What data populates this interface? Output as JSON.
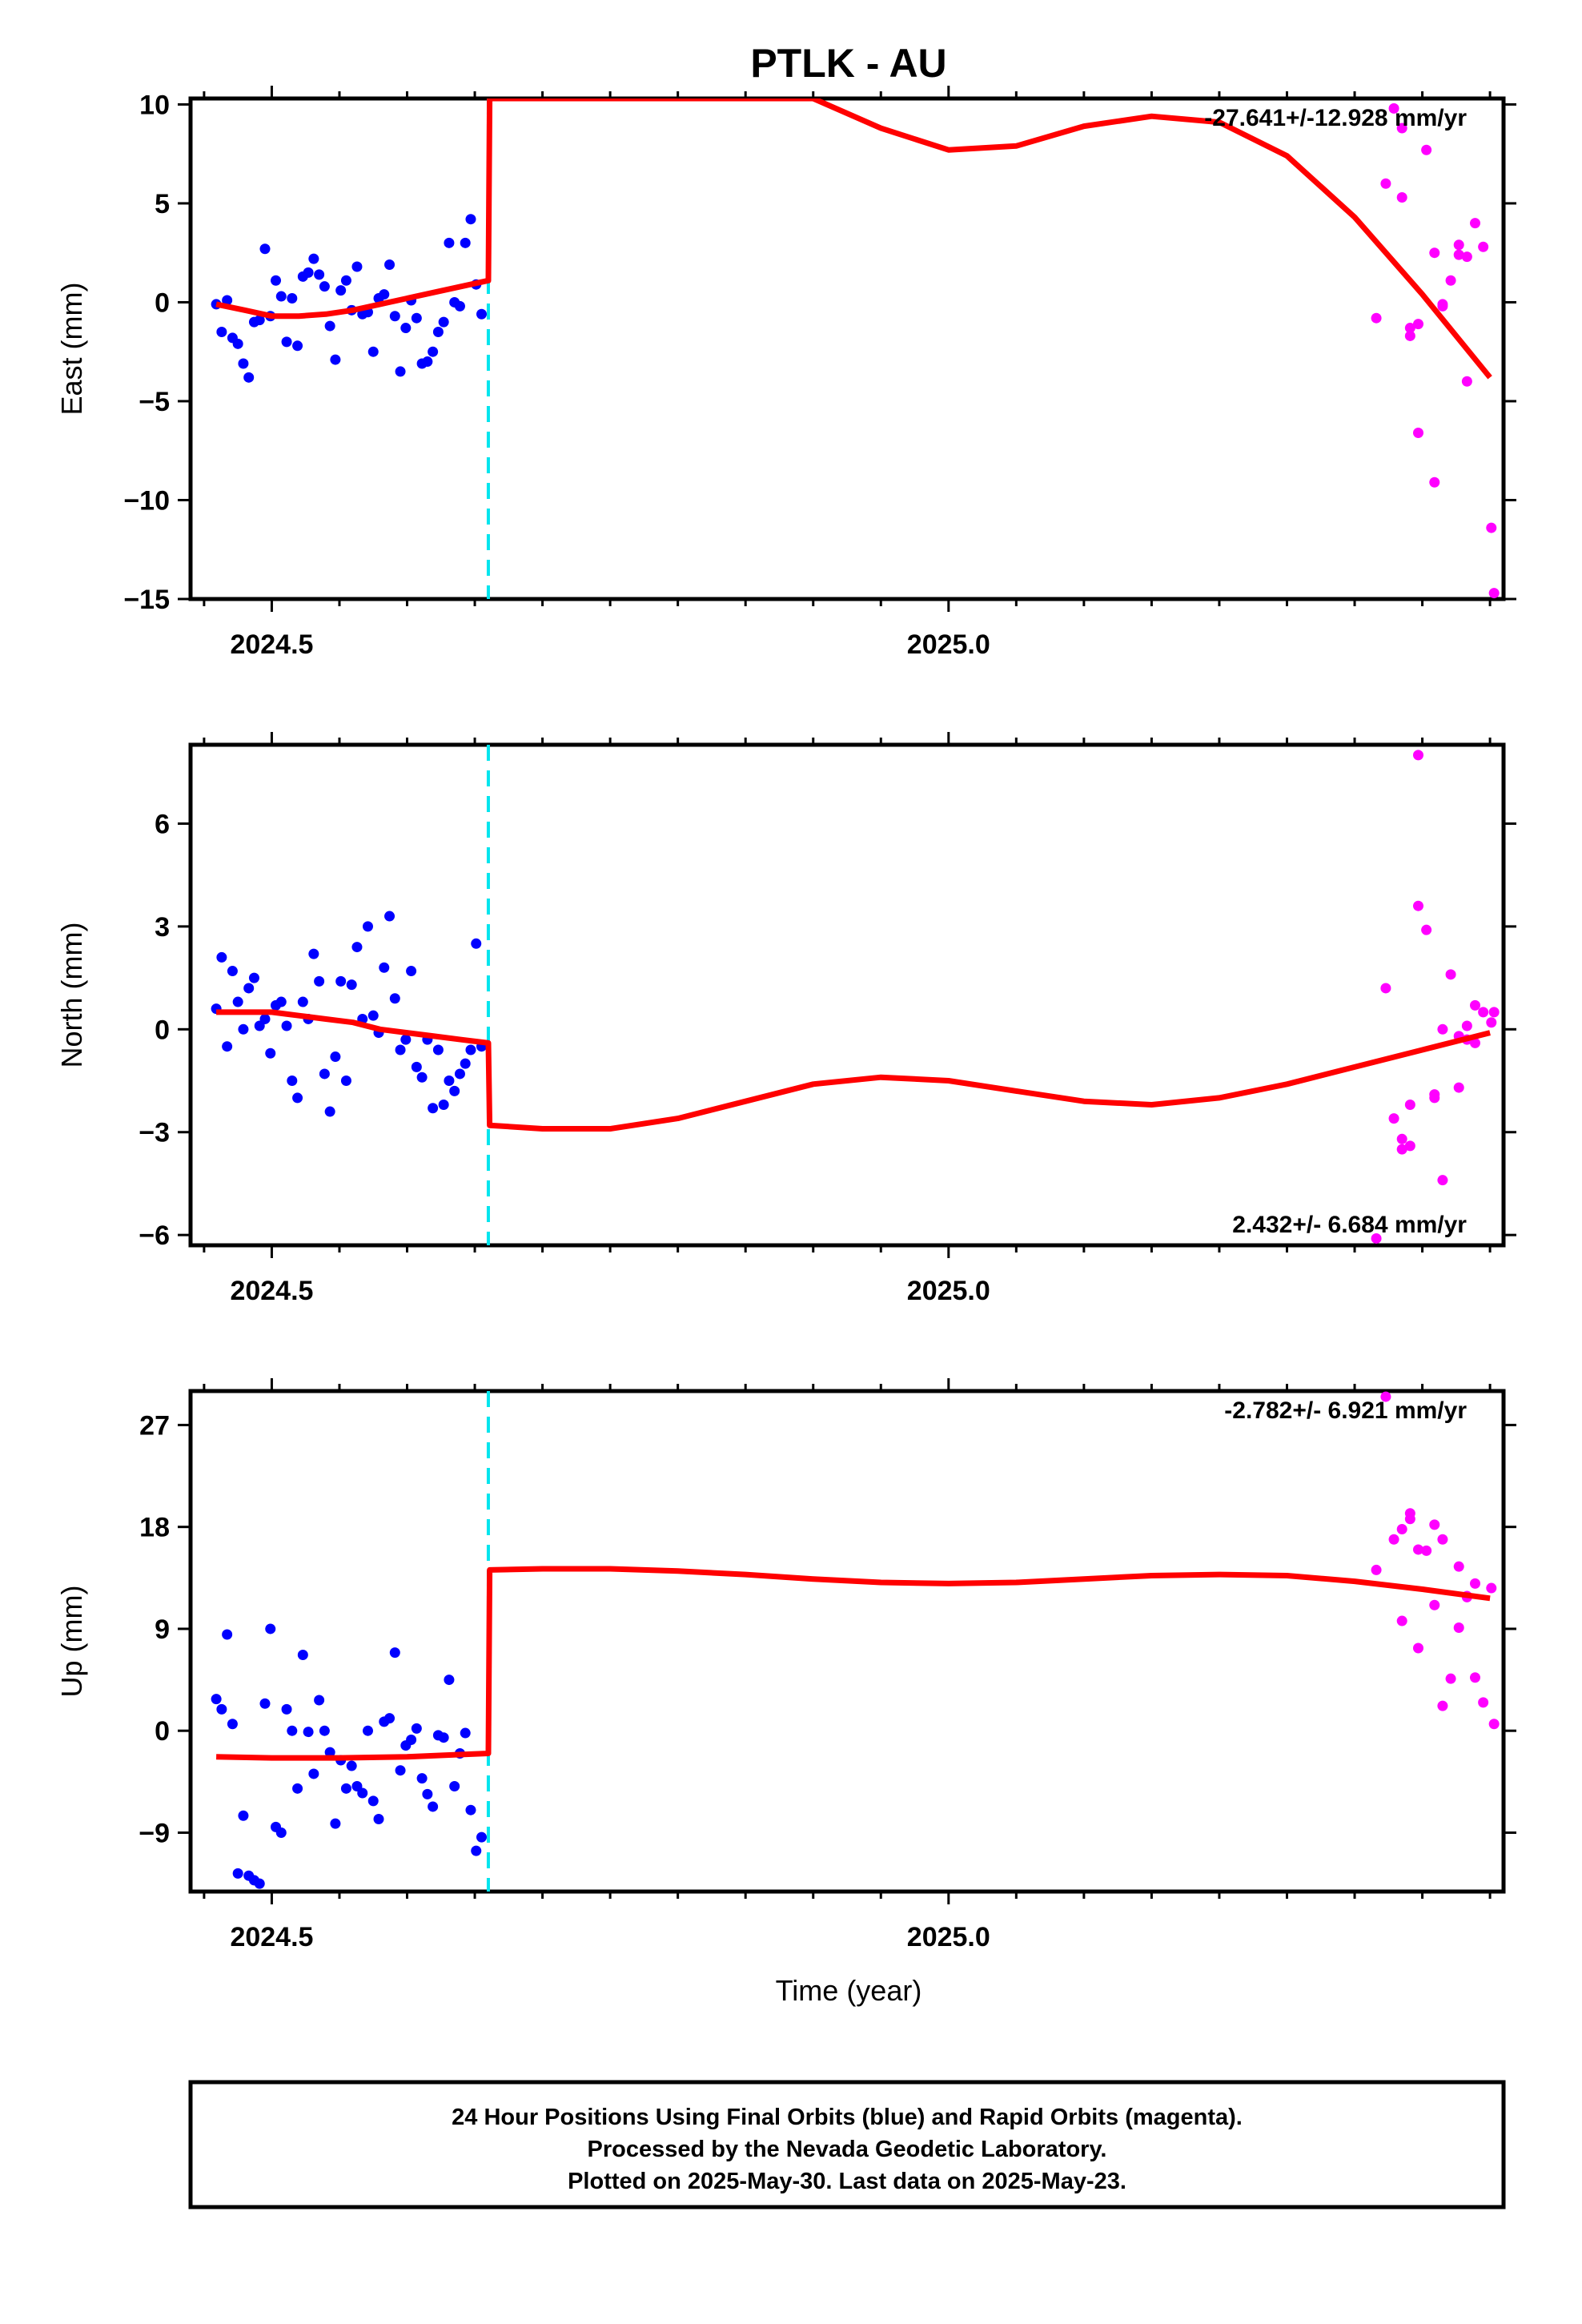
{
  "chart_data": {
    "type": "scatter",
    "title": "PTLK - AU",
    "xlabel": "Time (year)",
    "xlim": [
      2024.44,
      2025.41
    ],
    "xticks": [
      "2024.5",
      "2025.0"
    ],
    "colors": {
      "final": "#0000ff",
      "rapid": "#ff00ff",
      "model": "#ff0000",
      "offset": "#00e5ee",
      "frame": "#000000"
    },
    "offset_epoch": 2024.66,
    "panels": [
      {
        "name": "east",
        "ylabel": "East (mm)",
        "ylim": [
          -15,
          10.3
        ],
        "yticks": [
          "-15",
          "-10",
          "-5",
          "0",
          "5",
          "10"
        ],
        "rate_text": "-27.641+/-12.928 mm/yr",
        "rate_pos": "top-right",
        "final": {
          "x": [
            2024.459,
            2024.463,
            2024.467,
            2024.471,
            2024.475,
            2024.479,
            2024.483,
            2024.487,
            2024.491,
            2024.495,
            2024.499,
            2024.503,
            2024.507,
            2024.511,
            2024.515,
            2024.519,
            2024.523,
            2024.527,
            2024.531,
            2024.535,
            2024.539,
            2024.543,
            2024.547,
            2024.551,
            2024.555,
            2024.559,
            2024.563,
            2024.567,
            2024.571,
            2024.575,
            2024.579,
            2024.583,
            2024.587,
            2024.591,
            2024.595,
            2024.599,
            2024.603,
            2024.607,
            2024.611,
            2024.615,
            2024.619,
            2024.623,
            2024.627,
            2024.631,
            2024.635,
            2024.639,
            2024.643,
            2024.647,
            2024.651,
            2024.655
          ],
          "y": [
            -0.1,
            -1.5,
            0.1,
            -1.8,
            -2.1,
            -3.1,
            -3.8,
            -1.0,
            -0.9,
            2.7,
            -0.7,
            1.1,
            0.3,
            -2.0,
            0.2,
            -2.2,
            1.3,
            1.5,
            2.2,
            1.4,
            0.8,
            -1.2,
            -2.9,
            0.6,
            1.1,
            -0.4,
            1.8,
            -0.6,
            -0.5,
            -2.5,
            0.2,
            0.4,
            1.9,
            -0.7,
            -3.5,
            -1.3,
            0.1,
            -0.8,
            -3.1,
            -3.0,
            -2.5,
            -1.5,
            -1.0,
            3.0,
            0.0,
            -0.2,
            3.0,
            4.2,
            0.9,
            -0.6
          ]
        },
        "rapid": {
          "x": [
            2025.316,
            2025.323,
            2025.329,
            2025.335,
            2025.341,
            2025.347,
            2025.353,
            2025.359,
            2025.365,
            2025.371,
            2025.377,
            2025.383,
            2025.389,
            2025.395,
            2025.401,
            2025.403,
            2025.335,
            2025.341,
            2025.347,
            2025.359,
            2025.365,
            2025.377,
            2025.383
          ],
          "y": [
            -0.8,
            6.0,
            9.8,
            5.3,
            -1.3,
            -6.6,
            7.7,
            -9.1,
            -0.1,
            1.1,
            2.4,
            -4.0,
            4.0,
            2.8,
            -11.4,
            -14.7,
            8.8,
            -1.7,
            -1.1,
            2.5,
            -0.2,
            2.9,
            2.3
          ]
        },
        "model": {
          "x": [
            2024.459,
            2024.48,
            2024.5,
            2024.52,
            2024.54,
            2024.56,
            2024.58,
            2024.6,
            2024.62,
            2024.64,
            2024.66,
            2024.661,
            2024.9,
            2024.95,
            2025.0,
            2025.05,
            2025.1,
            2025.15,
            2025.2,
            2025.25,
            2025.3,
            2025.35,
            2025.4
          ],
          "y": [
            -0.1,
            -0.4,
            -0.7,
            -0.7,
            -0.6,
            -0.4,
            -0.1,
            0.2,
            0.5,
            0.8,
            1.1,
            10.3,
            10.3,
            8.8,
            7.7,
            7.9,
            8.9,
            9.4,
            9.1,
            7.4,
            4.3,
            0.4,
            -3.8
          ]
        }
      },
      {
        "name": "north",
        "ylabel": "North (mm)",
        "ylim": [
          -6.3,
          8.3
        ],
        "yticks": [
          "-6",
          "-3",
          "0",
          "3",
          "6"
        ],
        "rate_text": "2.432+/- 6.684 mm/yr",
        "rate_pos": "bottom-right",
        "final": {
          "x": [
            2024.459,
            2024.463,
            2024.467,
            2024.471,
            2024.475,
            2024.479,
            2024.483,
            2024.487,
            2024.491,
            2024.495,
            2024.499,
            2024.503,
            2024.507,
            2024.511,
            2024.515,
            2024.519,
            2024.523,
            2024.527,
            2024.531,
            2024.535,
            2024.539,
            2024.543,
            2024.547,
            2024.551,
            2024.555,
            2024.559,
            2024.563,
            2024.567,
            2024.571,
            2024.575,
            2024.579,
            2024.583,
            2024.587,
            2024.591,
            2024.595,
            2024.599,
            2024.603,
            2024.607,
            2024.611,
            2024.615,
            2024.619,
            2024.623,
            2024.627,
            2024.631,
            2024.635,
            2024.639,
            2024.643,
            2024.647,
            2024.651,
            2024.655
          ],
          "y": [
            0.6,
            2.1,
            -0.5,
            1.7,
            0.8,
            0.0,
            1.2,
            1.5,
            0.1,
            0.3,
            -0.7,
            0.7,
            0.8,
            0.1,
            -1.5,
            -2.0,
            0.8,
            0.3,
            2.2,
            1.4,
            -1.3,
            -2.4,
            -0.8,
            1.4,
            -1.5,
            1.3,
            2.4,
            0.3,
            3.0,
            0.4,
            -0.1,
            1.8,
            3.3,
            0.9,
            -0.6,
            -0.3,
            1.7,
            -1.1,
            -1.4,
            -0.3,
            -2.3,
            -0.6,
            -2.2,
            -1.5,
            -1.8,
            -1.3,
            -1.0,
            -0.6,
            2.5,
            -0.5
          ]
        },
        "rapid": {
          "x": [
            2025.316,
            2025.323,
            2025.329,
            2025.335,
            2025.341,
            2025.347,
            2025.353,
            2025.359,
            2025.365,
            2025.371,
            2025.377,
            2025.383,
            2025.389,
            2025.395,
            2025.401,
            2025.403,
            2025.335,
            2025.341,
            2025.347,
            2025.359,
            2025.365,
            2025.377,
            2025.383,
            2025.389
          ],
          "y": [
            -6.1,
            1.2,
            -2.6,
            -3.2,
            -3.4,
            8.0,
            2.9,
            -2.0,
            -4.4,
            1.6,
            -1.7,
            0.1,
            -0.4,
            0.5,
            0.2,
            0.5,
            -3.5,
            -2.2,
            3.6,
            -1.9,
            0.0,
            -0.2,
            -0.3,
            0.7
          ]
        },
        "model": {
          "x": [
            2024.459,
            2024.48,
            2024.5,
            2024.52,
            2024.54,
            2024.56,
            2024.58,
            2024.6,
            2024.62,
            2024.64,
            2024.66,
            2024.661,
            2024.7,
            2024.75,
            2024.8,
            2024.85,
            2024.9,
            2024.95,
            2025.0,
            2025.05,
            2025.1,
            2025.15,
            2025.2,
            2025.25,
            2025.3,
            2025.35,
            2025.4
          ],
          "y": [
            0.5,
            0.5,
            0.5,
            0.4,
            0.3,
            0.2,
            0.0,
            -0.1,
            -0.2,
            -0.3,
            -0.4,
            -2.8,
            -2.9,
            -2.9,
            -2.6,
            -2.1,
            -1.6,
            -1.4,
            -1.5,
            -1.8,
            -2.1,
            -2.2,
            -2.0,
            -1.6,
            -1.1,
            -0.6,
            -0.1
          ]
        }
      },
      {
        "name": "up",
        "ylabel": "Up (mm)",
        "ylim": [
          -14.2,
          30
        ],
        "yticks": [
          "-9",
          "0",
          "9",
          "18",
          "27"
        ],
        "rate_text": "-2.782+/- 6.921 mm/yr",
        "rate_pos": "top-right",
        "final": {
          "x": [
            2024.459,
            2024.463,
            2024.467,
            2024.471,
            2024.475,
            2024.479,
            2024.483,
            2024.487,
            2024.491,
            2024.495,
            2024.499,
            2024.503,
            2024.507,
            2024.511,
            2024.515,
            2024.519,
            2024.523,
            2024.527,
            2024.531,
            2024.535,
            2024.539,
            2024.543,
            2024.547,
            2024.551,
            2024.555,
            2024.559,
            2024.563,
            2024.567,
            2024.571,
            2024.575,
            2024.579,
            2024.583,
            2024.587,
            2024.591,
            2024.595,
            2024.599,
            2024.603,
            2024.607,
            2024.611,
            2024.615,
            2024.619,
            2024.623,
            2024.627,
            2024.631,
            2024.635,
            2024.639,
            2024.643,
            2024.647,
            2024.651,
            2024.655
          ],
          "y": [
            2.8,
            1.9,
            8.5,
            0.6,
            -12.6,
            -7.5,
            -12.8,
            -13.2,
            -13.5,
            2.4,
            9.0,
            -8.5,
            -9.0,
            1.9,
            0.0,
            -5.1,
            6.7,
            -0.1,
            -3.8,
            2.7,
            0.0,
            -1.9,
            -8.2,
            -2.6,
            -5.1,
            -3.1,
            -4.9,
            -5.5,
            0.0,
            -6.2,
            -7.8,
            0.8,
            1.1,
            6.9,
            -3.5,
            -1.3,
            -0.8,
            0.2,
            -4.2,
            -5.6,
            -6.7,
            -0.4,
            -0.6,
            4.5,
            -4.9,
            -2.0,
            -0.2,
            -7.0,
            -10.6,
            -9.4
          ]
        },
        "rapid": {
          "x": [
            2025.316,
            2025.323,
            2025.329,
            2025.335,
            2025.341,
            2025.347,
            2025.353,
            2025.359,
            2025.365,
            2025.371,
            2025.377,
            2025.383,
            2025.389,
            2025.395,
            2025.401,
            2025.403,
            2025.335,
            2025.341,
            2025.347,
            2025.359,
            2025.365,
            2025.377,
            2025.383,
            2025.389
          ],
          "y": [
            14.2,
            29.5,
            16.9,
            9.7,
            18.7,
            7.3,
            15.9,
            11.1,
            2.2,
            4.6,
            14.5,
            11.8,
            4.7,
            2.5,
            12.6,
            0.6,
            17.8,
            19.2,
            16.0,
            18.2,
            16.9,
            9.1,
            11.9,
            13.0
          ]
        },
        "model": {
          "x": [
            2024.459,
            2024.5,
            2024.55,
            2024.6,
            2024.64,
            2024.66,
            2024.661,
            2024.7,
            2024.75,
            2024.8,
            2024.85,
            2024.9,
            2024.95,
            2025.0,
            2025.05,
            2025.1,
            2025.15,
            2025.2,
            2025.25,
            2025.3,
            2025.35,
            2025.4
          ],
          "y": [
            -2.3,
            -2.4,
            -2.4,
            -2.3,
            -2.1,
            -2.0,
            14.2,
            14.3,
            14.3,
            14.1,
            13.8,
            13.4,
            13.1,
            13.0,
            13.1,
            13.4,
            13.7,
            13.8,
            13.7,
            13.2,
            12.5,
            11.7
          ]
        }
      }
    ],
    "caption": [
      "24 Hour Positions Using Final Orbits (blue) and Rapid Orbits (magenta).",
      "Processed by the Nevada Geodetic Laboratory.",
      "Plotted on 2025-May-30. Last data on 2025-May-23."
    ]
  }
}
